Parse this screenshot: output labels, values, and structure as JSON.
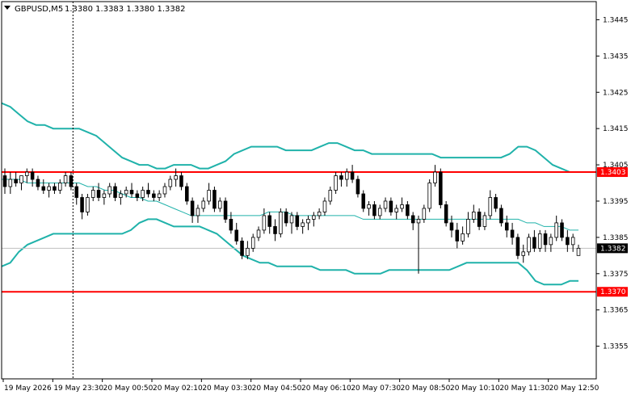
{
  "chart_header": {
    "symbol": "GBPUSD,M5",
    "ohlc_text": "1.3380 1.3383 1.3380 1.3382"
  },
  "colors": {
    "background": "#ffffff",
    "candle_up_fill": "#ffffff",
    "candle_down_fill": "#000000",
    "candle_outline": "#000000",
    "bollinger_bands": "#20b2aa",
    "level_lines": "#ff0000",
    "current_price_line": "#c0c0c0",
    "current_price_label_bg": "#000000",
    "current_price_label_text": "#ffffff",
    "level_label_bg": "#ff0000",
    "level_label_text": "#ffffff"
  },
  "chart_data": {
    "type": "candlestick",
    "title": "GBPUSD,M5",
    "ylim": [
      1.3346,
      1.345
    ],
    "y_ticks": [
      "1.3445",
      "1.3435",
      "1.3425",
      "1.3415",
      "1.3405",
      "1.3395",
      "1.3385",
      "1.3375",
      "1.3365",
      "1.3355"
    ],
    "x_ticks": [
      "19 May 2026",
      "19 May 23:30",
      "20 May 00:50",
      "20 May 02:10",
      "20 May 03:30",
      "20 May 04:50",
      "20 May 06:10",
      "20 May 07:30",
      "20 May 08:50",
      "20 May 10:10",
      "20 May 11:30",
      "20 May 12:50"
    ],
    "grid": false,
    "current_price": "1.3382",
    "horizontal_levels": [
      "1.3403",
      "1.3370"
    ],
    "vertical_marker": "19 May 23:30",
    "series": [
      {
        "name": "",
        "kind": "ohlc",
        "ohlc": [
          [
            1.3402,
            1.3404,
            1.3397,
            1.3399
          ],
          [
            1.3399,
            1.3403,
            1.3397,
            1.3401
          ],
          [
            1.3401,
            1.3403,
            1.3399,
            1.34
          ],
          [
            1.34,
            1.3402,
            1.3398,
            1.3402
          ],
          [
            1.3402,
            1.3404,
            1.34,
            1.3403
          ],
          [
            1.3403,
            1.3404,
            1.3399,
            1.3401
          ],
          [
            1.3401,
            1.3402,
            1.3398,
            1.3399
          ],
          [
            1.3399,
            1.3401,
            1.3397,
            1.3398
          ],
          [
            1.3398,
            1.34,
            1.3396,
            1.3399
          ],
          [
            1.3399,
            1.34,
            1.3397,
            1.3398
          ],
          [
            1.3398,
            1.3401,
            1.3397,
            1.34
          ],
          [
            1.34,
            1.3403,
            1.3399,
            1.3402
          ],
          [
            1.3402,
            1.3403,
            1.3398,
            1.3399
          ],
          [
            1.3399,
            1.34,
            1.3394,
            1.3396
          ],
          [
            1.3396,
            1.3397,
            1.339,
            1.3392
          ],
          [
            1.3392,
            1.3397,
            1.3391,
            1.3396
          ],
          [
            1.3396,
            1.3399,
            1.3395,
            1.3398
          ],
          [
            1.3398,
            1.34,
            1.3395,
            1.3396
          ],
          [
            1.3396,
            1.3398,
            1.3394,
            1.3397
          ],
          [
            1.3397,
            1.34,
            1.3396,
            1.3399
          ],
          [
            1.3399,
            1.34,
            1.3395,
            1.3396
          ],
          [
            1.3396,
            1.3398,
            1.3394,
            1.3397
          ],
          [
            1.3397,
            1.3399,
            1.3396,
            1.3398
          ],
          [
            1.3398,
            1.34,
            1.3396,
            1.3397
          ],
          [
            1.3397,
            1.3398,
            1.3395,
            1.3396
          ],
          [
            1.3396,
            1.3399,
            1.3395,
            1.3398
          ],
          [
            1.3398,
            1.34,
            1.3396,
            1.3397
          ],
          [
            1.3397,
            1.3398,
            1.3395,
            1.3396
          ],
          [
            1.3396,
            1.3398,
            1.3395,
            1.3397
          ],
          [
            1.3397,
            1.34,
            1.3396,
            1.3399
          ],
          [
            1.3399,
            1.3402,
            1.3398,
            1.3401
          ],
          [
            1.3401,
            1.3404,
            1.3399,
            1.3402
          ],
          [
            1.3402,
            1.3403,
            1.3398,
            1.3399
          ],
          [
            1.3399,
            1.34,
            1.3394,
            1.3395
          ],
          [
            1.3395,
            1.3396,
            1.3389,
            1.3391
          ],
          [
            1.3391,
            1.3394,
            1.3389,
            1.3393
          ],
          [
            1.3393,
            1.3396,
            1.3392,
            1.3395
          ],
          [
            1.3395,
            1.34,
            1.3394,
            1.3398
          ],
          [
            1.3398,
            1.3399,
            1.3392,
            1.3393
          ],
          [
            1.3393,
            1.3396,
            1.3392,
            1.3395
          ],
          [
            1.3395,
            1.3396,
            1.3389,
            1.339
          ],
          [
            1.339,
            1.3392,
            1.3386,
            1.3387
          ],
          [
            1.3387,
            1.3389,
            1.3383,
            1.3384
          ],
          [
            1.3384,
            1.3385,
            1.3379,
            1.338
          ],
          [
            1.338,
            1.3384,
            1.3379,
            1.3382
          ],
          [
            1.3382,
            1.3386,
            1.3381,
            1.3385
          ],
          [
            1.3385,
            1.3388,
            1.3384,
            1.3387
          ],
          [
            1.3387,
            1.3393,
            1.3386,
            1.3391
          ],
          [
            1.3391,
            1.3392,
            1.3386,
            1.3388
          ],
          [
            1.3388,
            1.339,
            1.3384,
            1.3386
          ],
          [
            1.3386,
            1.3393,
            1.3385,
            1.3392
          ],
          [
            1.3392,
            1.3393,
            1.3388,
            1.3389
          ],
          [
            1.3389,
            1.3392,
            1.3386,
            1.3391
          ],
          [
            1.3391,
            1.3392,
            1.3387,
            1.3388
          ],
          [
            1.3388,
            1.339,
            1.3386,
            1.3389
          ],
          [
            1.3389,
            1.3391,
            1.3387,
            1.339
          ],
          [
            1.339,
            1.3392,
            1.3388,
            1.3391
          ],
          [
            1.3391,
            1.3393,
            1.339,
            1.3392
          ],
          [
            1.3392,
            1.3396,
            1.3391,
            1.3395
          ],
          [
            1.3395,
            1.3399,
            1.3394,
            1.3398
          ],
          [
            1.3398,
            1.3403,
            1.3397,
            1.3402
          ],
          [
            1.3402,
            1.3403,
            1.3399,
            1.3401
          ],
          [
            1.3401,
            1.3404,
            1.3399,
            1.3403
          ],
          [
            1.3403,
            1.3405,
            1.34,
            1.3401
          ],
          [
            1.3401,
            1.3402,
            1.3396,
            1.3397
          ],
          [
            1.3397,
            1.3398,
            1.3392,
            1.3393
          ],
          [
            1.3393,
            1.3395,
            1.3391,
            1.3394
          ],
          [
            1.3394,
            1.3395,
            1.339,
            1.3391
          ],
          [
            1.3391,
            1.3394,
            1.339,
            1.3393
          ],
          [
            1.3393,
            1.3396,
            1.3392,
            1.3395
          ],
          [
            1.3395,
            1.3396,
            1.3391,
            1.3392
          ],
          [
            1.3392,
            1.3394,
            1.339,
            1.3393
          ],
          [
            1.3393,
            1.3396,
            1.3392,
            1.3394
          ],
          [
            1.3394,
            1.3395,
            1.339,
            1.3391
          ],
          [
            1.3391,
            1.3392,
            1.3387,
            1.3389
          ],
          [
            1.3389,
            1.3391,
            1.3375,
            1.339
          ],
          [
            1.339,
            1.3394,
            1.3389,
            1.3393
          ],
          [
            1.3393,
            1.3401,
            1.3392,
            1.34
          ],
          [
            1.34,
            1.3405,
            1.3399,
            1.3403
          ],
          [
            1.3403,
            1.3404,
            1.3393,
            1.3394
          ],
          [
            1.3394,
            1.3395,
            1.3388,
            1.3389
          ],
          [
            1.3389,
            1.3391,
            1.3385,
            1.3387
          ],
          [
            1.3387,
            1.3389,
            1.3382,
            1.3384
          ],
          [
            1.3384,
            1.3388,
            1.3383,
            1.3386
          ],
          [
            1.3386,
            1.3392,
            1.3385,
            1.339
          ],
          [
            1.339,
            1.3394,
            1.3389,
            1.3392
          ],
          [
            1.3392,
            1.3393,
            1.3387,
            1.3388
          ],
          [
            1.3388,
            1.3392,
            1.3387,
            1.3391
          ],
          [
            1.3391,
            1.3398,
            1.339,
            1.3396
          ],
          [
            1.3396,
            1.3397,
            1.3392,
            1.3393
          ],
          [
            1.3393,
            1.3394,
            1.3388,
            1.3389
          ],
          [
            1.3389,
            1.3391,
            1.3385,
            1.3387
          ],
          [
            1.3387,
            1.3389,
            1.3383,
            1.3385
          ],
          [
            1.3385,
            1.3386,
            1.3379,
            1.338
          ],
          [
            1.338,
            1.3383,
            1.3378,
            1.3381
          ],
          [
            1.3381,
            1.3386,
            1.338,
            1.3385
          ],
          [
            1.3385,
            1.3387,
            1.3381,
            1.3382
          ],
          [
            1.3382,
            1.3387,
            1.3381,
            1.3386
          ],
          [
            1.3386,
            1.3387,
            1.3381,
            1.3383
          ],
          [
            1.3383,
            1.3386,
            1.3381,
            1.3385
          ],
          [
            1.3385,
            1.3391,
            1.3384,
            1.3389
          ],
          [
            1.3389,
            1.339,
            1.3384,
            1.3385
          ],
          [
            1.3385,
            1.3387,
            1.3381,
            1.3383
          ],
          [
            1.3383,
            1.3386,
            1.3381,
            1.3385
          ],
          [
            1.338,
            1.3383,
            1.338,
            1.3382
          ]
        ]
      },
      {
        "name": "",
        "kind": "bollinger_upper",
        "values": [
          1.3422,
          1.3421,
          1.3419,
          1.3417,
          1.3416,
          1.3416,
          1.3415,
          1.3415,
          1.3415,
          1.3415,
          1.3414,
          1.3413,
          1.3411,
          1.3409,
          1.3407,
          1.3406,
          1.3405,
          1.3405,
          1.3404,
          1.3404,
          1.3405,
          1.3405,
          1.3405,
          1.3404,
          1.3404,
          1.3405,
          1.3406,
          1.3408,
          1.3409,
          1.341,
          1.341,
          1.341,
          1.341,
          1.3409,
          1.3409,
          1.3409,
          1.3409,
          1.341,
          1.3411,
          1.3411,
          1.341,
          1.3409,
          1.3409,
          1.3408,
          1.3408,
          1.3408,
          1.3408,
          1.3408,
          1.3408,
          1.3408,
          1.3408,
          1.3407,
          1.3407,
          1.3407,
          1.3407,
          1.3407,
          1.3407,
          1.3407,
          1.3407,
          1.3408,
          1.341,
          1.341,
          1.3409,
          1.3407,
          1.3405,
          1.3404,
          1.3403,
          1.3403
        ]
      },
      {
        "name": "",
        "kind": "bollinger_middle",
        "values": [
          1.3401,
          1.3401,
          1.3401,
          1.34,
          1.34,
          1.34,
          1.34,
          1.34,
          1.34,
          1.34,
          1.3399,
          1.3399,
          1.3398,
          1.3398,
          1.3397,
          1.3396,
          1.3396,
          1.3395,
          1.3395,
          1.3394,
          1.3393,
          1.3392,
          1.3391,
          1.3391,
          1.3391,
          1.3391,
          1.3391,
          1.3391,
          1.3391,
          1.3391,
          1.3391,
          1.3392,
          1.3392,
          1.3392,
          1.3391,
          1.3391,
          1.3391,
          1.3391,
          1.3391,
          1.3391,
          1.3391,
          1.3391,
          1.339,
          1.339,
          1.339,
          1.339,
          1.339,
          1.339,
          1.339,
          1.339,
          1.339,
          1.339,
          1.339,
          1.339,
          1.339,
          1.339,
          1.339,
          1.339,
          1.339,
          1.339,
          1.339,
          1.3389,
          1.3389,
          1.3388,
          1.3388,
          1.3388,
          1.3387,
          1.3387
        ]
      },
      {
        "name": "",
        "kind": "bollinger_lower",
        "values": [
          1.3377,
          1.3378,
          1.3381,
          1.3383,
          1.3384,
          1.3385,
          1.3386,
          1.3386,
          1.3386,
          1.3386,
          1.3386,
          1.3386,
          1.3386,
          1.3386,
          1.3386,
          1.3387,
          1.3389,
          1.339,
          1.339,
          1.3389,
          1.3388,
          1.3388,
          1.3388,
          1.3388,
          1.3387,
          1.3386,
          1.3384,
          1.3382,
          1.338,
          1.3379,
          1.3378,
          1.3378,
          1.3377,
          1.3377,
          1.3377,
          1.3377,
          1.3377,
          1.3376,
          1.3376,
          1.3376,
          1.3376,
          1.3375,
          1.3375,
          1.3375,
          1.3375,
          1.3376,
          1.3376,
          1.3376,
          1.3376,
          1.3376,
          1.3376,
          1.3376,
          1.3376,
          1.3377,
          1.3378,
          1.3378,
          1.3378,
          1.3378,
          1.3378,
          1.3378,
          1.3378,
          1.3376,
          1.3373,
          1.3372,
          1.3372,
          1.3372,
          1.3373,
          1.3373
        ]
      }
    ]
  }
}
